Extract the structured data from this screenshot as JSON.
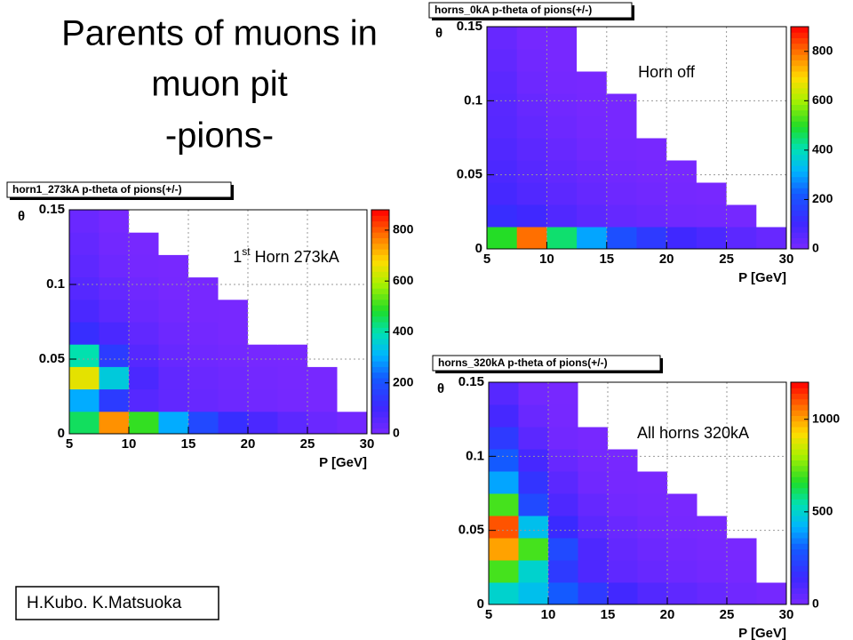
{
  "slide": {
    "title_lines": [
      "Parents of muons in",
      "muon pit",
      "-pions-"
    ],
    "credit": "H.Kubo. K.Matsuoka"
  },
  "chart_data": [
    {
      "type": "heatmap",
      "title": "horns_0kA p-theta of pions(+/-)",
      "annotation": "Horn off",
      "xlabel": "P [GeV]",
      "ylabel": "θ",
      "xlim": [
        5,
        30
      ],
      "xticks": [
        5,
        10,
        15,
        20,
        25,
        30
      ],
      "ylim": [
        0,
        0.15
      ],
      "yticks": [
        0,
        0.05,
        0.1,
        0.15
      ],
      "zlim": [
        0,
        900
      ],
      "zticks": [
        0,
        200,
        400,
        600,
        800
      ],
      "xbins": [
        5,
        7.5,
        10,
        12.5,
        15,
        17.5,
        20,
        22.5,
        25,
        27.5,
        30
      ],
      "ybins": [
        0,
        0.015,
        0.03,
        0.045,
        0.06,
        0.075,
        0.09,
        0.105,
        0.12,
        0.135,
        0.15
      ],
      "values": [
        [
          500,
          800,
          450,
          300,
          200,
          150,
          100,
          80,
          50,
          30
        ],
        [
          120,
          100,
          70,
          50,
          35,
          25,
          15,
          10,
          5,
          0
        ],
        [
          90,
          70,
          50,
          35,
          20,
          12,
          6,
          2,
          0,
          0
        ],
        [
          80,
          60,
          40,
          25,
          12,
          5,
          1,
          0,
          0,
          0
        ],
        [
          70,
          50,
          30,
          15,
          5,
          1,
          0,
          0,
          0,
          0
        ],
        [
          60,
          40,
          20,
          8,
          2,
          0,
          0,
          0,
          0,
          0
        ],
        [
          55,
          30,
          12,
          3,
          1,
          0,
          0,
          0,
          0,
          0
        ],
        [
          50,
          20,
          5,
          1,
          0,
          0,
          0,
          0,
          0,
          0
        ],
        [
          40,
          12,
          2,
          0,
          0,
          0,
          0,
          0,
          0,
          0
        ],
        [
          30,
          5,
          1,
          0,
          0,
          0,
          0,
          0,
          0,
          0
        ]
      ]
    },
    {
      "type": "heatmap",
      "title": "horn1_273kA p-theta of pions(+/-)",
      "annotation": {
        "number": "1",
        "suffix": "st",
        "text": "Horn 273kA"
      },
      "xlabel": "P [GeV]",
      "ylabel": "θ",
      "xlim": [
        5,
        30
      ],
      "xticks": [
        5,
        10,
        15,
        20,
        25,
        30
      ],
      "ylim": [
        0,
        0.15
      ],
      "yticks": [
        0,
        0.05,
        0.1,
        0.15
      ],
      "zlim": [
        0,
        880
      ],
      "zticks": [
        0,
        200,
        400,
        600,
        800
      ],
      "xbins": [
        5,
        7.5,
        10,
        12.5,
        15,
        17.5,
        20,
        22.5,
        25,
        27.5,
        30
      ],
      "ybins": [
        0,
        0.015,
        0.03,
        0.045,
        0.06,
        0.075,
        0.09,
        0.105,
        0.12,
        0.135,
        0.15
      ],
      "values": [
        [
          450,
          750,
          500,
          300,
          180,
          120,
          80,
          50,
          25,
          10
        ],
        [
          300,
          150,
          60,
          40,
          30,
          20,
          12,
          6,
          2,
          0
        ],
        [
          650,
          350,
          80,
          40,
          25,
          15,
          8,
          3,
          1,
          0
        ],
        [
          400,
          150,
          60,
          30,
          15,
          8,
          3,
          1,
          0,
          0
        ],
        [
          120,
          80,
          40,
          20,
          8,
          2,
          0,
          0,
          0,
          0
        ],
        [
          80,
          50,
          25,
          10,
          3,
          1,
          0,
          0,
          0,
          0
        ],
        [
          60,
          35,
          15,
          4,
          1,
          0,
          0,
          0,
          0,
          0
        ],
        [
          45,
          20,
          6,
          1,
          0,
          0,
          0,
          0,
          0,
          0
        ],
        [
          35,
          10,
          2,
          0,
          0,
          0,
          0,
          0,
          0,
          0
        ],
        [
          25,
          4,
          0,
          0,
          0,
          0,
          0,
          0,
          0,
          0
        ]
      ]
    },
    {
      "type": "heatmap",
      "title": "horns_320kA p-theta of pions(+/-)",
      "annotation": "All horns 320kA",
      "xlabel": "P [GeV]",
      "ylabel": "θ",
      "xlim": [
        5,
        30
      ],
      "xticks": [
        5,
        10,
        15,
        20,
        25,
        30
      ],
      "ylim": [
        0,
        0.15
      ],
      "yticks": [
        0,
        0.05,
        0.1,
        0.15
      ],
      "zlim": [
        0,
        1200
      ],
      "zticks": [
        0,
        500,
        1000
      ],
      "xbins": [
        5,
        7.5,
        10,
        12.5,
        15,
        17.5,
        20,
        22.5,
        25,
        27.5,
        30
      ],
      "ybins": [
        0,
        0.015,
        0.03,
        0.045,
        0.06,
        0.075,
        0.09,
        0.105,
        0.12,
        0.135,
        0.15
      ],
      "values": [
        [
          500,
          450,
          300,
          200,
          130,
          90,
          60,
          40,
          20,
          8
        ],
        [
          700,
          500,
          200,
          100,
          60,
          40,
          25,
          12,
          4,
          0
        ],
        [
          1000,
          700,
          250,
          100,
          50,
          30,
          15,
          6,
          1,
          0
        ],
        [
          1100,
          450,
          150,
          70,
          35,
          15,
          5,
          1,
          0,
          0
        ],
        [
          700,
          250,
          100,
          45,
          15,
          4,
          1,
          0,
          0,
          0
        ],
        [
          400,
          180,
          70,
          20,
          5,
          1,
          0,
          0,
          0,
          0
        ],
        [
          300,
          120,
          40,
          10,
          2,
          0,
          0,
          0,
          0,
          0
        ],
        [
          200,
          70,
          15,
          3,
          0,
          0,
          0,
          0,
          0,
          0
        ],
        [
          120,
          35,
          6,
          0,
          0,
          0,
          0,
          0,
          0,
          0
        ],
        [
          80,
          15,
          2,
          0,
          0,
          0,
          0,
          0,
          0,
          0
        ]
      ]
    }
  ]
}
